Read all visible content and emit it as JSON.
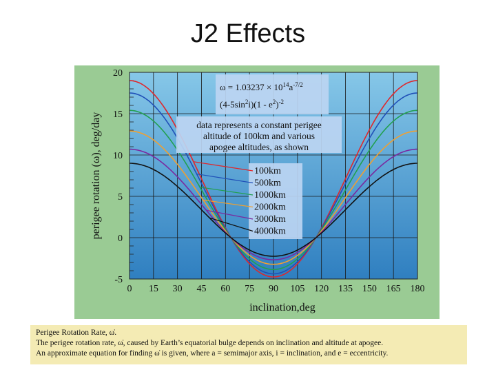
{
  "slide": {
    "title": "J2 Effects"
  },
  "chart_data": {
    "type": "line",
    "title": "",
    "xlabel": "inclination,deg",
    "ylabel": "perigee rotation (ω), deg/day",
    "xlim": [
      0,
      180
    ],
    "ylim": [
      -5,
      20
    ],
    "xticks": [
      0,
      15,
      30,
      45,
      60,
      75,
      90,
      105,
      120,
      135,
      150,
      165,
      180
    ],
    "yticks": [
      -5,
      0,
      5,
      10,
      15,
      20
    ],
    "grid": true,
    "equation": {
      "line1_main": "ω = 1.03237 × 10",
      "line1_sup1": "14",
      "line1_mid": "a",
      "line1_sup2": "-7/2",
      "line2_main": "(4-5sin",
      "line2_sup1": "2",
      "line2_mid": "i)(1 - e",
      "line2_sup2": "2",
      "line2_end": ")",
      "line2_sup3": "-2"
    },
    "annotation": [
      "data represents a constant perigee",
      "altitude of 100km and various",
      "apogee altitudes, as shown"
    ],
    "legend_position": "center",
    "series": [
      {
        "name": "100km",
        "color": "#e0262a",
        "amplitude": 19.0
      },
      {
        "name": "500km",
        "color": "#2050b8",
        "amplitude": 17.5
      },
      {
        "name": "1000km",
        "color": "#22a050",
        "amplitude": 15.4
      },
      {
        "name": "2000km",
        "color": "#f0a030",
        "amplitude": 12.9
      },
      {
        "name": "3000km",
        "color": "#7a2aa0",
        "amplitude": 10.7
      },
      {
        "name": "4000km",
        "color": "#111111",
        "amplitude": 9.0
      }
    ]
  },
  "caption": {
    "line1": "Perigee Rotation Rate, ω̇.",
    "line2": "The perigee rotation rate, ω̇, caused by Earth’s equatorial bulge depends on inclination and altitude at apogee.",
    "line3": "An approximate equation for finding ω̇ is given, where a = semimajor axis, i = inclination, and e = eccentricity."
  },
  "colors": {
    "frame": "#9acb94",
    "plot_top": "#86c7e8",
    "plot_bottom": "#2f7fc0",
    "caption_bg": "#f4ebb4"
  }
}
